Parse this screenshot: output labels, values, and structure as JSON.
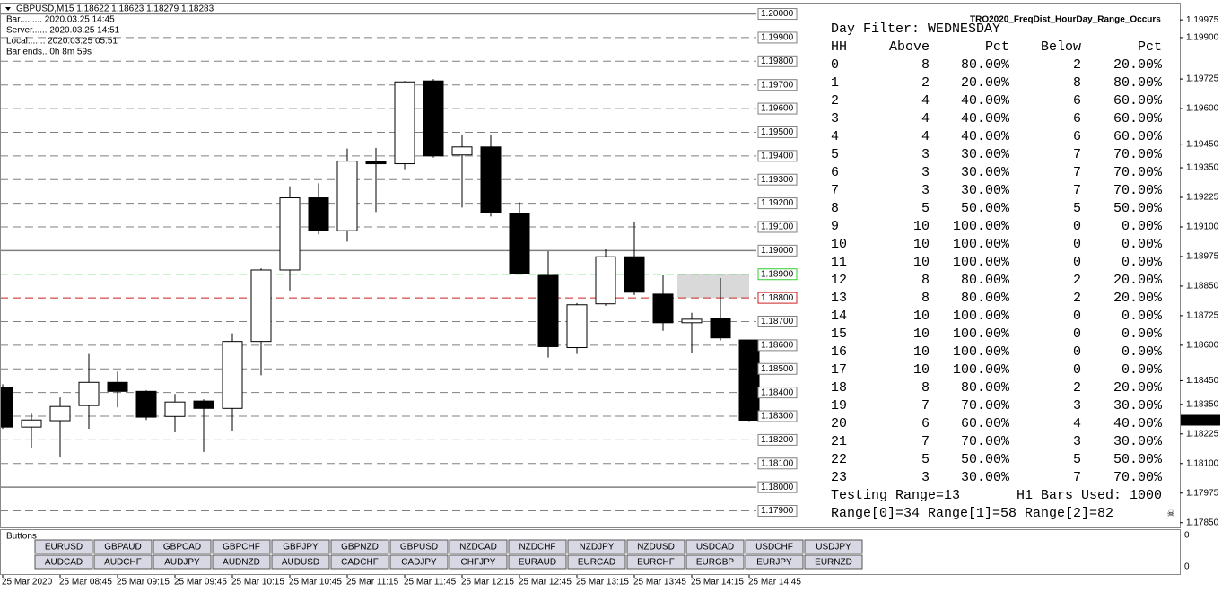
{
  "window": {
    "title": "GBPUSD,M15  1.18622 1.18623 1.18279 1.18283",
    "info": [
      "Bar......... 2020.03.25 14:45",
      "Server...... 2020.03.25 14:51",
      "Local....... 2020.03.25 05:51",
      "Bar ends.. 0h 8m 59s"
    ]
  },
  "chart_data": {
    "type": "candlestick",
    "categories": [
      "25 Mar 2020",
      null,
      "25 Mar 08:45",
      null,
      "25 Mar 09:15",
      null,
      "25 Mar 09:45",
      null,
      "25 Mar 10:15",
      null,
      "25 Mar 10:45",
      null,
      "25 Mar 11:15",
      null,
      "25 Mar 11:45",
      null,
      "25 Mar 12:15",
      null,
      "25 Mar 12:45",
      null,
      "25 Mar 13:15",
      null,
      "25 Mar 13:45",
      null,
      "25 Mar 14:15",
      null,
      "25 Mar 14:45"
    ],
    "open": [
      1.1842,
      1.18254,
      1.18281,
      1.18345,
      1.18443,
      1.18405,
      1.18299,
      1.18364,
      1.18333,
      1.18616,
      1.18918,
      1.19223,
      1.19084,
      1.19378,
      1.19367,
      1.19717,
      1.19404,
      1.19438,
      1.19155,
      1.18895,
      1.1859,
      1.18775,
      1.18974,
      1.18816,
      1.18695,
      1.18714,
      1.18622
    ],
    "high": [
      1.18435,
      1.18314,
      1.18379,
      1.18563,
      1.18488,
      1.18409,
      1.18394,
      1.18371,
      1.1865,
      1.18925,
      1.19272,
      1.19284,
      1.19431,
      1.19434,
      1.19717,
      1.19725,
      1.19491,
      1.19491,
      1.19204,
      1.18997,
      1.18778,
      1.19005,
      1.19121,
      1.18895,
      1.18737,
      1.18884,
      1.18623
    ],
    "low": [
      1.18247,
      1.18164,
      1.18126,
      1.18247,
      1.18337,
      1.18284,
      1.18232,
      1.18149,
      1.18239,
      1.18473,
      1.18831,
      1.19069,
      1.19038,
      1.19163,
      1.19344,
      1.19393,
      1.19182,
      1.19144,
      1.18899,
      1.18548,
      1.18563,
      1.18767,
      1.18812,
      1.18661,
      1.18567,
      1.1862,
      1.18279
    ],
    "close": [
      1.18254,
      1.18284,
      1.18341,
      1.18443,
      1.18405,
      1.18296,
      1.1836,
      1.18333,
      1.18616,
      1.18918,
      1.19223,
      1.19084,
      1.19378,
      1.19367,
      1.19713,
      1.194,
      1.19438,
      1.19159,
      1.18903,
      1.18594,
      1.18771,
      1.18974,
      1.18824,
      1.18695,
      1.1871,
      1.18631,
      1.18283
    ],
    "up_color": "#ffffff",
    "down_color": "#000000",
    "ylim": [
      1.1783,
      1.2004
    ],
    "yticks": [
      {
        "value": 1.19975,
        "label": "1.19975"
      },
      {
        "value": 1.199,
        "label": "1.19900"
      },
      {
        "value": 1.19725,
        "label": "1.19725"
      },
      {
        "value": 1.196,
        "label": "1.19600"
      },
      {
        "value": 1.1945,
        "label": "1.19450"
      },
      {
        "value": 1.1935,
        "label": "1.19350"
      },
      {
        "value": 1.19225,
        "label": "1.19225"
      },
      {
        "value": 1.191,
        "label": "1.19100"
      },
      {
        "value": 1.18975,
        "label": "1.18975"
      },
      {
        "value": 1.1885,
        "label": "1.18850"
      },
      {
        "value": 1.18725,
        "label": "1.18725"
      },
      {
        "value": 1.186,
        "label": "1.18600"
      },
      {
        "value": 1.1845,
        "label": "1.18450"
      },
      {
        "value": 1.1835,
        "label": "1.18350"
      },
      {
        "value": 1.18225,
        "label": "1.18225"
      },
      {
        "value": 1.181,
        "label": "1.18100"
      },
      {
        "value": 1.17975,
        "label": "1.17975"
      },
      {
        "value": 1.1785,
        "label": "1.17850"
      }
    ],
    "current_price": 1.18283,
    "levels": [
      {
        "value": 1.2,
        "label": "1.20000",
        "color": "#808080",
        "style": "solid"
      },
      {
        "value": 1.199,
        "label": "1.19900",
        "color": "#808080",
        "style": "dashed"
      },
      {
        "value": 1.198,
        "label": "1.19800",
        "color": "#808080",
        "style": "dashed"
      },
      {
        "value": 1.197,
        "label": "1.19700",
        "color": "#808080",
        "style": "dashed"
      },
      {
        "value": 1.196,
        "label": "1.19600",
        "color": "#808080",
        "style": "dashed"
      },
      {
        "value": 1.195,
        "label": "1.19500",
        "color": "#808080",
        "style": "dashed"
      },
      {
        "value": 1.194,
        "label": "1.19400",
        "color": "#808080",
        "style": "dashed"
      },
      {
        "value": 1.193,
        "label": "1.19300",
        "color": "#808080",
        "style": "dashed"
      },
      {
        "value": 1.192,
        "label": "1.19200",
        "color": "#808080",
        "style": "dashed"
      },
      {
        "value": 1.191,
        "label": "1.19100",
        "color": "#808080",
        "style": "dashed"
      },
      {
        "value": 1.19,
        "label": "1.19000",
        "color": "#808080",
        "style": "solid"
      },
      {
        "value": 1.189,
        "label": "1.18900",
        "color": "#33cc33",
        "style": "dashed"
      },
      {
        "value": 1.188,
        "label": "1.18800",
        "color": "#cc2222",
        "style": "dashed"
      },
      {
        "value": 1.187,
        "label": "1.18700",
        "color": "#808080",
        "style": "dashed"
      },
      {
        "value": 1.186,
        "label": "1.18600",
        "color": "#808080",
        "style": "dashed"
      },
      {
        "value": 1.185,
        "label": "1.18500",
        "color": "#808080",
        "style": "dashed"
      },
      {
        "value": 1.184,
        "label": "1.18400",
        "color": "#808080",
        "style": "dashed"
      },
      {
        "value": 1.183,
        "label": "1.18300",
        "color": "#808080",
        "style": "dashed"
      },
      {
        "value": 1.182,
        "label": "1.18200",
        "color": "#808080",
        "style": "dashed"
      },
      {
        "value": 1.181,
        "label": "1.18100",
        "color": "#808080",
        "style": "dashed"
      },
      {
        "value": 1.18,
        "label": "1.18000",
        "color": "#808080",
        "style": "solid"
      },
      {
        "value": 1.179,
        "label": "1.17900",
        "color": "#808080",
        "style": "dashed"
      }
    ],
    "zone": [
      1.188,
      1.189
    ],
    "zone_color": "#d9d9d9"
  },
  "indicator": {
    "name": "TRO2020_FreqDist_HourDay_Range_Occurs",
    "filter": "Day Filter: WEDNESDAY",
    "headers": [
      "HH",
      "Above",
      "Pct",
      "Below",
      "Pct"
    ],
    "colors": {
      "up": "#3caa3c",
      "down": "#dd2222",
      "even": "#8c8c8c",
      "text": "#8c8c8c"
    },
    "rows": [
      {
        "hh": 0,
        "above": 8,
        "above_pct": "80.00%",
        "below": 2,
        "below_pct": "20.00%"
      },
      {
        "hh": 1,
        "above": 2,
        "above_pct": "20.00%",
        "below": 8,
        "below_pct": "80.00%"
      },
      {
        "hh": 2,
        "above": 4,
        "above_pct": "40.00%",
        "below": 6,
        "below_pct": "60.00%"
      },
      {
        "hh": 3,
        "above": 4,
        "above_pct": "40.00%",
        "below": 6,
        "below_pct": "60.00%"
      },
      {
        "hh": 4,
        "above": 4,
        "above_pct": "40.00%",
        "below": 6,
        "below_pct": "60.00%"
      },
      {
        "hh": 5,
        "above": 3,
        "above_pct": "30.00%",
        "below": 7,
        "below_pct": "70.00%"
      },
      {
        "hh": 6,
        "above": 3,
        "above_pct": "30.00%",
        "below": 7,
        "below_pct": "70.00%"
      },
      {
        "hh": 7,
        "above": 3,
        "above_pct": "30.00%",
        "below": 7,
        "below_pct": "70.00%"
      },
      {
        "hh": 8,
        "above": 5,
        "above_pct": "50.00%",
        "below": 5,
        "below_pct": "50.00%"
      },
      {
        "hh": 9,
        "above": 10,
        "above_pct": "100.00%",
        "below": 0,
        "below_pct": "0.00%"
      },
      {
        "hh": 10,
        "above": 10,
        "above_pct": "100.00%",
        "below": 0,
        "below_pct": "0.00%"
      },
      {
        "hh": 11,
        "above": 10,
        "above_pct": "100.00%",
        "below": 0,
        "below_pct": "0.00%"
      },
      {
        "hh": 12,
        "above": 8,
        "above_pct": "80.00%",
        "below": 2,
        "below_pct": "20.00%"
      },
      {
        "hh": 13,
        "above": 8,
        "above_pct": "80.00%",
        "below": 2,
        "below_pct": "20.00%"
      },
      {
        "hh": 14,
        "above": 10,
        "above_pct": "100.00%",
        "below": 0,
        "below_pct": "0.00%",
        "hh_color": "#e040e0"
      },
      {
        "hh": 15,
        "above": 10,
        "above_pct": "100.00%",
        "below": 0,
        "below_pct": "0.00%"
      },
      {
        "hh": 16,
        "above": 10,
        "above_pct": "100.00%",
        "below": 0,
        "below_pct": "0.00%"
      },
      {
        "hh": 17,
        "above": 10,
        "above_pct": "100.00%",
        "below": 0,
        "below_pct": "0.00%"
      },
      {
        "hh": 18,
        "above": 8,
        "above_pct": "80.00%",
        "below": 2,
        "below_pct": "20.00%"
      },
      {
        "hh": 19,
        "above": 7,
        "above_pct": "70.00%",
        "below": 3,
        "below_pct": "30.00%"
      },
      {
        "hh": 20,
        "above": 6,
        "above_pct": "60.00%",
        "below": 4,
        "below_pct": "40.00%"
      },
      {
        "hh": 21,
        "above": 7,
        "above_pct": "70.00%",
        "below": 3,
        "below_pct": "30.00%"
      },
      {
        "hh": 22,
        "above": 5,
        "above_pct": "50.00%",
        "below": 5,
        "below_pct": "50.00%"
      },
      {
        "hh": 23,
        "above": 3,
        "above_pct": "30.00%",
        "below": 7,
        "below_pct": "70.00%"
      }
    ],
    "footer": {
      "testing": "Testing Range=13",
      "bars": "H1 Bars Used: 1000",
      "ranges": "Range[0]=34 Range[1]=58 Range[2]=82",
      "icon": "☠"
    }
  },
  "subwindow": {
    "title": "Buttons",
    "axis_labels": [
      "0",
      "0"
    ],
    "buttons": [
      [
        {
          "label": "EURUSD"
        },
        {
          "label": "GBPAUD"
        },
        {
          "label": "GBPCAD"
        },
        {
          "label": "GBPCHF"
        },
        {
          "label": "GBPJPY"
        },
        {
          "label": "GBPNZD"
        },
        {
          "label": "GBPUSD",
          "color": "#2a3cff"
        },
        {
          "label": "NZDCAD"
        },
        {
          "label": "NZDCHF"
        },
        {
          "label": "NZDJPY"
        },
        {
          "label": "NZDUSD"
        },
        {
          "label": "USDCAD"
        },
        {
          "label": "USDCHF"
        },
        {
          "label": "USDJPY"
        }
      ],
      [
        {
          "label": "AUDCAD"
        },
        {
          "label": "AUDCHF"
        },
        {
          "label": "AUDJPY"
        },
        {
          "label": "AUDNZD"
        },
        {
          "label": "AUDUSD"
        },
        {
          "label": "CADCHF"
        },
        {
          "label": "CADJPY"
        },
        {
          "label": "CHFJPY"
        },
        {
          "label": "EURAUD"
        },
        {
          "label": "EURCAD"
        },
        {
          "label": "EURCHF"
        },
        {
          "label": "EURGBP"
        },
        {
          "label": "EURJPY"
        },
        {
          "label": "EURNZD"
        }
      ]
    ]
  }
}
